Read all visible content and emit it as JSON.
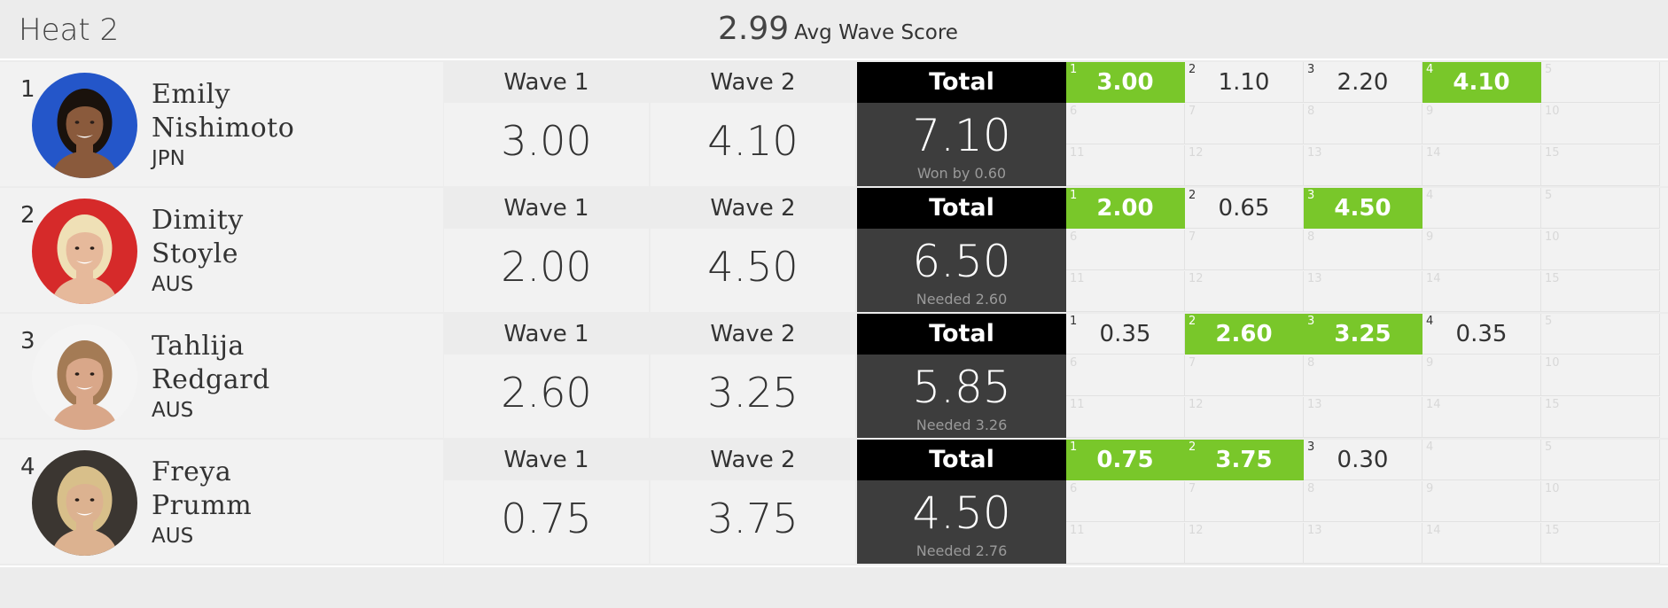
{
  "heat": {
    "title": "Heat 2",
    "avg_value": "2.99",
    "avg_label": "Avg Wave Score"
  },
  "colors": {
    "highlight": "#79c72a",
    "total_header": "#000000",
    "total_body": "#3d3d3d"
  },
  "surfers": [
    {
      "rank": "1",
      "first": "Emily",
      "last": "Nishimoto",
      "country": "JPN",
      "avatar_bg": "#2456c9",
      "skin": "#8a5a3c",
      "hair": "#1a120c",
      "wave1_label": "Wave 1",
      "wave1": "3.00",
      "wave2_label": "Wave 2",
      "wave2": "4.10",
      "total_label": "Total",
      "total": "7.10",
      "note": "Won by 0.60",
      "scores": [
        {
          "n": "1",
          "v": "3.00",
          "hi": true
        },
        {
          "n": "2",
          "v": "1.10",
          "hi": false
        },
        {
          "n": "3",
          "v": "2.20",
          "hi": false
        },
        {
          "n": "4",
          "v": "4.10",
          "hi": true
        }
      ]
    },
    {
      "rank": "2",
      "first": "Dimity",
      "last": "Stoyle",
      "country": "AUS",
      "avatar_bg": "#d62a2a",
      "skin": "#e6b99b",
      "hair": "#efe0b6",
      "wave1_label": "Wave 1",
      "wave1": "2.00",
      "wave2_label": "Wave 2",
      "wave2": "4.50",
      "total_label": "Total",
      "total": "6.50",
      "note": "Needed 2.60",
      "scores": [
        {
          "n": "1",
          "v": "2.00",
          "hi": true
        },
        {
          "n": "2",
          "v": "0.65",
          "hi": false
        },
        {
          "n": "3",
          "v": "4.50",
          "hi": true
        }
      ]
    },
    {
      "rank": "3",
      "first": "Tahlija",
      "last": "Redgard",
      "country": "AUS",
      "avatar_bg": "#f4f4f4",
      "skin": "#d9a789",
      "hair": "#a47b55",
      "wave1_label": "Wave 1",
      "wave1": "2.60",
      "wave2_label": "Wave 2",
      "wave2": "3.25",
      "total_label": "Total",
      "total": "5.85",
      "note": "Needed 3.26",
      "scores": [
        {
          "n": "1",
          "v": "0.35",
          "hi": false
        },
        {
          "n": "2",
          "v": "2.60",
          "hi": true
        },
        {
          "n": "3",
          "v": "3.25",
          "hi": true
        },
        {
          "n": "4",
          "v": "0.35",
          "hi": false
        }
      ]
    },
    {
      "rank": "4",
      "first": "Freya",
      "last": "Prumm",
      "country": "AUS",
      "avatar_bg": "#3b3631",
      "skin": "#dcb290",
      "hair": "#d8bf8a",
      "wave1_label": "Wave 1",
      "wave1": "0.75",
      "wave2_label": "Wave 2",
      "wave2": "3.75",
      "total_label": "Total",
      "total": "4.50",
      "note": "Needed 2.76",
      "scores": [
        {
          "n": "1",
          "v": "0.75",
          "hi": true
        },
        {
          "n": "2",
          "v": "3.75",
          "hi": true
        },
        {
          "n": "3",
          "v": "0.30",
          "hi": false
        }
      ]
    }
  ]
}
